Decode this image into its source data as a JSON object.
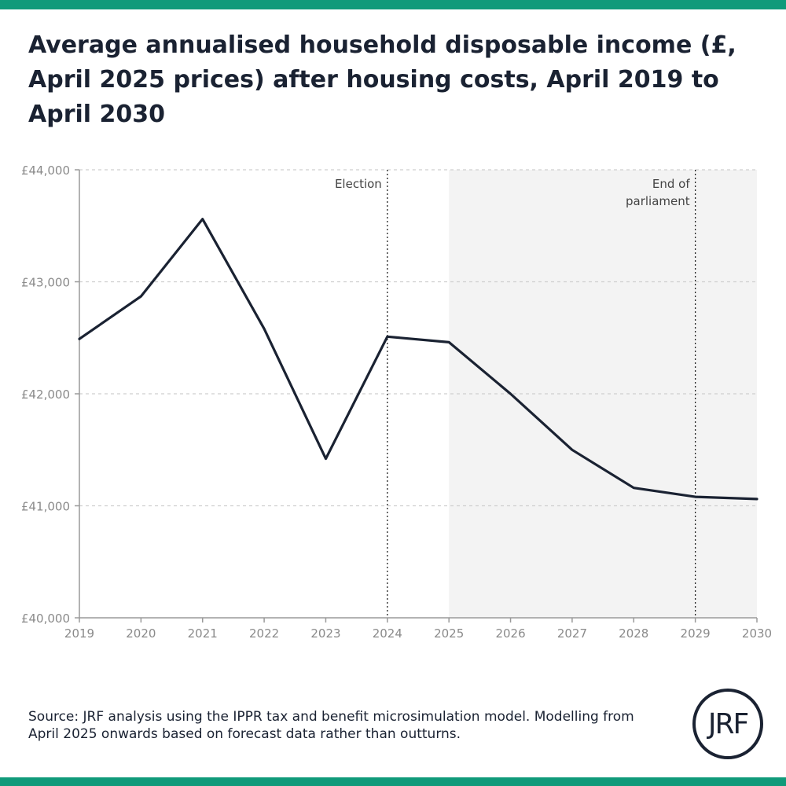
{
  "title": "Average annualised household disposable income (£, April 2025 prices) after housing costs, April 2019 to April 2030",
  "source": "Source: JRF analysis using the IPPR tax and benefit microsimulation model. Modelling from April 2025 onwards based on forecast data rather than outturns.",
  "logo_text": "JRF",
  "colors": {
    "brand": "#109a7a",
    "line": "#1a2232",
    "shade": "#f3f3f3",
    "axis": "#9a9a9a",
    "tick_text": "#8a8a8a"
  },
  "chart_data": {
    "type": "line",
    "x": [
      2019,
      2020,
      2021,
      2022,
      2023,
      2024,
      2025,
      2026,
      2027,
      2028,
      2029,
      2030
    ],
    "series": [
      {
        "values": [
          42490,
          42870,
          43560,
          42580,
          41420,
          42510,
          42460,
          42000,
          41500,
          41160,
          41080,
          41060
        ]
      }
    ],
    "xlabel": "",
    "ylabel": "",
    "xlim": [
      2019,
      2030
    ],
    "ylim": [
      40000,
      44000
    ],
    "yticks": [
      40000,
      41000,
      42000,
      43000,
      44000
    ],
    "ytick_labels": [
      "£40,000",
      "£41,000",
      "£42,000",
      "£43,000",
      "£44,000"
    ],
    "xtick_labels": [
      "2019",
      "2020",
      "2021",
      "2022",
      "2023",
      "2024",
      "2025",
      "2026",
      "2027",
      "2028",
      "2029",
      "2030"
    ],
    "grid": true,
    "shaded_region": {
      "from": 2025,
      "to": 2030
    },
    "annotations": [
      {
        "x": 2024,
        "lines": [
          "Election"
        ]
      },
      {
        "x": 2029,
        "lines": [
          "End of",
          "parliament"
        ]
      }
    ]
  }
}
